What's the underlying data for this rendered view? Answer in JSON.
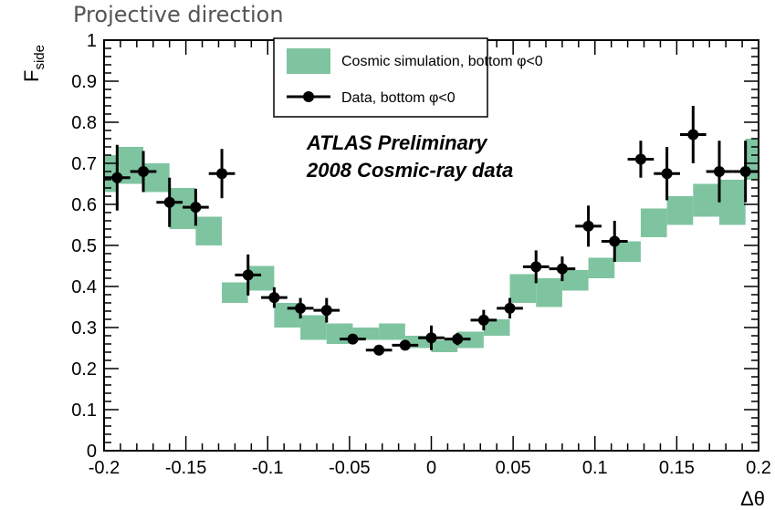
{
  "page_title": "Projective direction",
  "chart_data": {
    "type": "scatter",
    "xlabel": "Δθ",
    "ylabel": "F",
    "ylabel_sub": "side",
    "xlim": [
      -0.2,
      0.2
    ],
    "ylim": [
      0,
      1
    ],
    "x_ticks": [
      -0.2,
      -0.15,
      -0.1,
      -0.05,
      0,
      0.05,
      0.1,
      0.15,
      0.2
    ],
    "x_tick_labels": [
      "-0.2",
      "-0.15",
      "-0.1",
      "-0.05",
      "0",
      "0.05",
      "0.1",
      "0.15",
      "0.2"
    ],
    "y_ticks": [
      0,
      0.1,
      0.2,
      0.3,
      0.4,
      0.5,
      0.6,
      0.7,
      0.8,
      0.9,
      1
    ],
    "y_tick_labels": [
      "0",
      "0.1",
      "0.2",
      "0.3",
      "0.4",
      "0.5",
      "0.6",
      "0.7",
      "0.8",
      "0.9",
      "1"
    ],
    "grid": false,
    "legend_position": "top-center",
    "annotations": [
      "ATLAS Preliminary",
      "2008 Cosmic-ray data"
    ],
    "series": [
      {
        "name": "Cosmic simulation, bottom φ<0",
        "style": "band",
        "color": "#7fc4a0",
        "x": [
          -0.2,
          -0.184,
          -0.168,
          -0.152,
          -0.136,
          -0.12,
          -0.104,
          -0.088,
          -0.072,
          -0.056,
          -0.04,
          -0.024,
          -0.008,
          0.008,
          0.024,
          0.04,
          0.056,
          0.072,
          0.088,
          0.104,
          0.12,
          0.136,
          0.152,
          0.168,
          0.184,
          0.2
        ],
        "low": [
          0.63,
          0.65,
          0.63,
          0.54,
          0.5,
          0.36,
          0.39,
          0.3,
          0.27,
          0.26,
          0.27,
          0.27,
          0.25,
          0.24,
          0.25,
          0.28,
          0.36,
          0.35,
          0.39,
          0.42,
          0.46,
          0.52,
          0.55,
          0.57,
          0.55,
          0.66
        ],
        "high": [
          0.72,
          0.74,
          0.7,
          0.64,
          0.57,
          0.41,
          0.45,
          0.36,
          0.33,
          0.31,
          0.3,
          0.31,
          0.28,
          0.27,
          0.29,
          0.32,
          0.43,
          0.42,
          0.44,
          0.47,
          0.51,
          0.59,
          0.62,
          0.65,
          0.66,
          0.76
        ]
      },
      {
        "name": "Data, bottom φ<0",
        "style": "points",
        "color": "#000000",
        "x": [
          -0.192,
          -0.176,
          -0.16,
          -0.144,
          -0.128,
          -0.112,
          -0.096,
          -0.08,
          -0.064,
          -0.048,
          -0.032,
          -0.016,
          0,
          0.016,
          0.032,
          0.048,
          0.064,
          0.08,
          0.096,
          0.112,
          0.128,
          0.144,
          0.16,
          0.176,
          0.192
        ],
        "y": [
          0.665,
          0.68,
          0.605,
          0.593,
          0.675,
          0.428,
          0.373,
          0.347,
          0.342,
          0.272,
          0.245,
          0.257,
          0.275,
          0.272,
          0.318,
          0.347,
          0.448,
          0.443,
          0.547,
          0.51,
          0.71,
          0.675,
          0.77,
          0.68,
          0.68
        ],
        "yerr": [
          0.08,
          0.05,
          0.06,
          0.045,
          0.06,
          0.05,
          0.025,
          0.025,
          0.03,
          0.01,
          0.01,
          0.01,
          0.03,
          0.015,
          0.025,
          0.025,
          0.04,
          0.03,
          0.05,
          0.05,
          0.045,
          0.065,
          0.07,
          0.075,
          0.075
        ],
        "xerr": 0.008
      }
    ]
  }
}
